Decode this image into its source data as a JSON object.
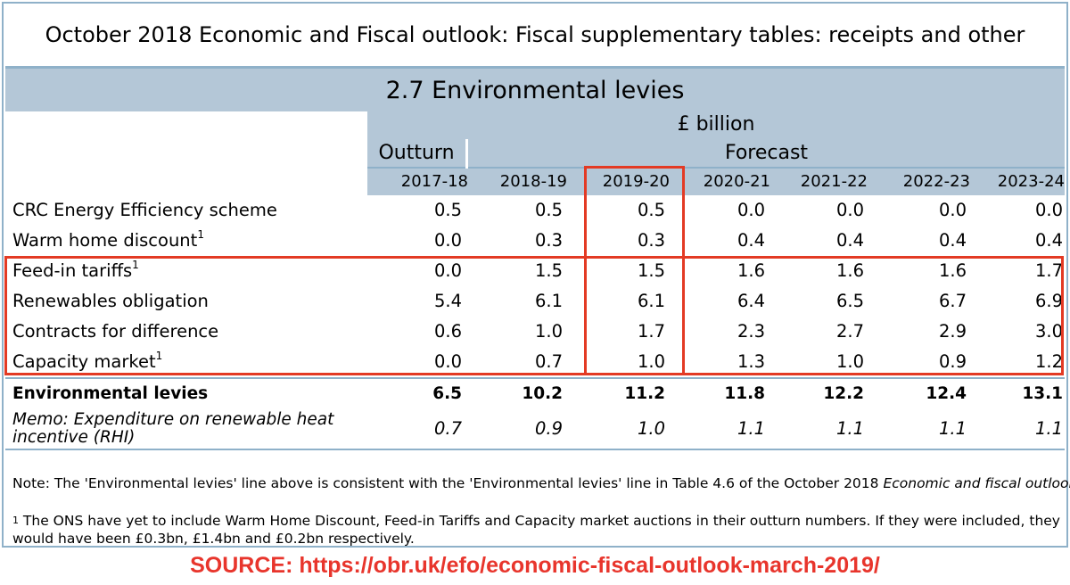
{
  "page_title": "October 2018 Economic and Fiscal outlook: Fiscal supplementary tables: receipts and other",
  "table_title": "2.7 Environmental levies",
  "unit": "£ billion",
  "outturn_label": "Outturn",
  "forecast_label": "Forecast",
  "years": [
    "2017-18",
    "2018-19",
    "2019-20",
    "2020-21",
    "2021-22",
    "2022-23",
    "2023-24"
  ],
  "rows": [
    {
      "label": "CRC Energy Efficiency scheme",
      "footnote": "",
      "values": [
        "0.5",
        "0.5",
        "0.5",
        "0.0",
        "0.0",
        "0.0",
        "0.0"
      ]
    },
    {
      "label": "Warm home discount",
      "footnote": "1",
      "values": [
        "0.0",
        "0.3",
        "0.3",
        "0.4",
        "0.4",
        "0.4",
        "0.4"
      ]
    },
    {
      "label": "Feed-in tariffs",
      "footnote": "1",
      "values": [
        "0.0",
        "1.5",
        "1.5",
        "1.6",
        "1.6",
        "1.6",
        "1.7"
      ]
    },
    {
      "label": "Renewables obligation",
      "footnote": "",
      "values": [
        "5.4",
        "6.1",
        "6.1",
        "6.4",
        "6.5",
        "6.7",
        "6.9"
      ]
    },
    {
      "label": "Contracts for difference",
      "footnote": "",
      "values": [
        "0.6",
        "1.0",
        "1.7",
        "2.3",
        "2.7",
        "2.9",
        "3.0"
      ]
    },
    {
      "label": "Capacity market",
      "footnote": "1",
      "values": [
        "0.0",
        "0.7",
        "1.0",
        "1.3",
        "1.0",
        "0.9",
        "1.2"
      ]
    }
  ],
  "total": {
    "label": "Environmental levies",
    "values": [
      "6.5",
      "10.2",
      "11.2",
      "11.8",
      "12.2",
      "12.4",
      "13.1"
    ]
  },
  "memo": {
    "label_line1": "Memo: Expenditure on renewable heat",
    "label_line2": "incentive (RHI)",
    "values": [
      "0.7",
      "0.9",
      "1.0",
      "1.1",
      "1.1",
      "1.1",
      "1.1"
    ]
  },
  "note": {
    "prefix": "Note: The 'Environmental levies' line above is consistent with the 'Environmental levies' line in Table 4.6 of the October 2018 ",
    "italic": "Economic and fiscal outlook",
    "suffix": "."
  },
  "footnote": {
    "marker": "1",
    "text": " The ONS have yet to include Warm Home Discount, Feed-in Tariffs and Capacity market auctions in their outturn numbers. If they were included, they would have been £0.3bn, £1.4bn and £0.2bn respectively."
  },
  "source": "SOURCE: https://obr.uk/efo/economic-fiscal-outlook-march-2019/",
  "colors": {
    "header_bg": "#b4c7d7",
    "border": "#8fb1c9",
    "highlight": "#e33a24",
    "source_text": "#e8352c"
  }
}
